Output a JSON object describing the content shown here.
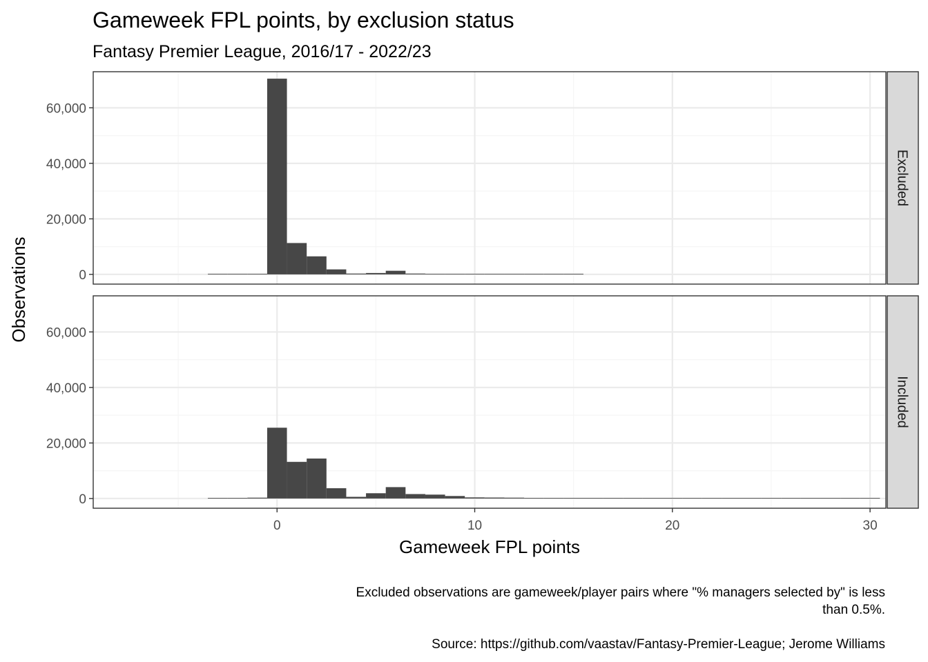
{
  "chart_data": {
    "type": "bar",
    "title": "Gameweek FPL points, by exclusion status",
    "subtitle": "Fantasy Premier League, 2016/17 - 2022/23",
    "xlabel": "Gameweek FPL points",
    "ylabel": "Observations",
    "xlim": [
      -9.3,
      30.8
    ],
    "ylim": [
      -3500,
      73000
    ],
    "x_ticks": [
      0,
      10,
      20,
      30
    ],
    "x_tick_labels": [
      "0",
      "10",
      "20",
      "30"
    ],
    "y_ticks": [
      0,
      20000,
      40000,
      60000
    ],
    "y_tick_labels": [
      "0",
      "20,000",
      "40,000",
      "60,000"
    ],
    "grid": true,
    "bin_width": 1,
    "bin_centers": [
      -3,
      -2,
      -1,
      0,
      1,
      2,
      3,
      4,
      5,
      6,
      7,
      8,
      9,
      10,
      11,
      12,
      13,
      14,
      15,
      16,
      17,
      18,
      19,
      20,
      21,
      22,
      23,
      24,
      25,
      26,
      27,
      28,
      29,
      30
    ],
    "facets": [
      "Excluded",
      "Included"
    ],
    "series": [
      {
        "name": "Excluded",
        "values": [
          10,
          60,
          150,
          70500,
          11300,
          6500,
          1800,
          300,
          500,
          1300,
          300,
          200,
          150,
          80,
          60,
          40,
          30,
          20,
          15,
          0,
          0,
          0,
          0,
          0,
          0,
          0,
          0,
          0,
          0,
          0,
          0,
          0,
          0,
          0
        ]
      },
      {
        "name": "Included",
        "values": [
          20,
          120,
          300,
          25500,
          13200,
          14400,
          3700,
          600,
          1900,
          4100,
          1600,
          1400,
          900,
          400,
          350,
          300,
          200,
          150,
          100,
          60,
          40,
          30,
          20,
          15,
          10,
          8,
          5,
          4,
          3,
          2,
          2,
          1,
          1,
          1
        ]
      }
    ]
  },
  "caption": {
    "note_line1": "Excluded observations are gameweek/player pairs where \"% managers selected by\" is less",
    "note_line2": "than 0.5%.",
    "source": "Source: https://github.com/vaastav/Fantasy-Premier-League; Jerome Williams"
  },
  "colors": {
    "bar": "#474747",
    "strip_fill": "#d9d9d9",
    "panel_border": "#333333",
    "grid_major": "#ebebeb",
    "grid_minor": "#f5f5f5"
  }
}
